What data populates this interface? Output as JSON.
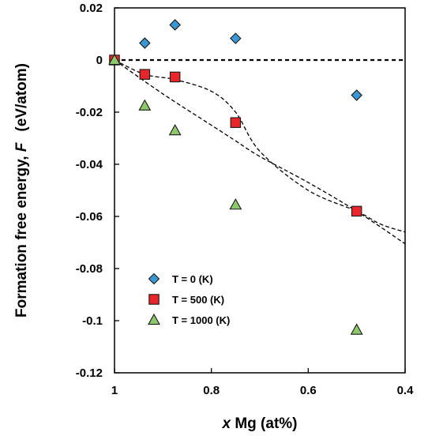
{
  "chart_data": {
    "type": "scatter",
    "xlabel_prefix": "x",
    "xlabel_rest": " Mg (at%)",
    "ylabel_main": "Formation free energy, ",
    "ylabel_var": "F",
    "ylabel_unit": "(eV/atom)",
    "xlim": [
      1,
      0.4
    ],
    "ylim": [
      -0.12,
      0.02
    ],
    "x_reversed": true,
    "x_ticks": [
      {
        "value": 1,
        "label": "1"
      },
      {
        "value": 0.8,
        "label": "0.8"
      },
      {
        "value": 0.6,
        "label": "0.6"
      },
      {
        "value": 0.4,
        "label": "0.4"
      }
    ],
    "y_ticks": [
      {
        "value": 0.02,
        "label": "0.02"
      },
      {
        "value": 0,
        "label": "0"
      },
      {
        "value": -0.02,
        "label": "-0.02"
      },
      {
        "value": -0.04,
        "label": "-0.04"
      },
      {
        "value": -0.06,
        "label": "-0.06"
      },
      {
        "value": -0.08,
        "label": "-0.08"
      },
      {
        "value": -0.1,
        "label": "-0.1"
      },
      {
        "value": -0.12,
        "label": "-0.12"
      }
    ],
    "grid": false,
    "legend_position": "bottom-left",
    "series": [
      {
        "name": "T = 0 (K)",
        "marker": "diamond",
        "color": "#3b97d3",
        "points": [
          [
            1,
            0
          ],
          [
            0.9375,
            0.0065
          ],
          [
            0.875,
            0.0135
          ],
          [
            0.75,
            0.0083
          ],
          [
            0.5,
            -0.0135
          ]
        ]
      },
      {
        "name": "T = 500 (K)",
        "marker": "square",
        "color": "#e8252a",
        "points": [
          [
            1,
            0
          ],
          [
            0.9375,
            -0.0055
          ],
          [
            0.875,
            -0.0065
          ],
          [
            0.75,
            -0.024
          ],
          [
            0.5,
            -0.058
          ]
        ]
      },
      {
        "name": "T = 1000 (K)",
        "marker": "triangle",
        "color": "#8dc96b",
        "points": [
          [
            1,
            0
          ],
          [
            0.9375,
            -0.0175
          ],
          [
            0.875,
            -0.027
          ],
          [
            0.75,
            -0.0555
          ],
          [
            0.5,
            -0.1035
          ]
        ]
      }
    ],
    "reference_lines": [
      {
        "style": "dashed",
        "points": [
          [
            1,
            0
          ],
          [
            0.4,
            0
          ]
        ]
      },
      {
        "style": "dashed",
        "points": [
          [
            1,
            0
          ],
          [
            0.9375,
            -0.0055
          ],
          [
            0.875,
            -0.0075
          ],
          [
            0.8,
            -0.012
          ],
          [
            0.75,
            -0.02
          ],
          [
            0.7,
            -0.035
          ],
          [
            0.6,
            -0.05
          ],
          [
            0.5,
            -0.058
          ],
          [
            0.45,
            -0.063
          ],
          [
            0.4,
            -0.066
          ]
        ]
      },
      {
        "style": "dashed",
        "points": [
          [
            1,
            0
          ],
          [
            0.9,
            -0.013
          ],
          [
            0.8,
            -0.025
          ],
          [
            0.75,
            -0.031
          ],
          [
            0.7,
            -0.037
          ],
          [
            0.6,
            -0.047
          ],
          [
            0.5,
            -0.058
          ],
          [
            0.4,
            -0.0705
          ]
        ]
      }
    ]
  }
}
